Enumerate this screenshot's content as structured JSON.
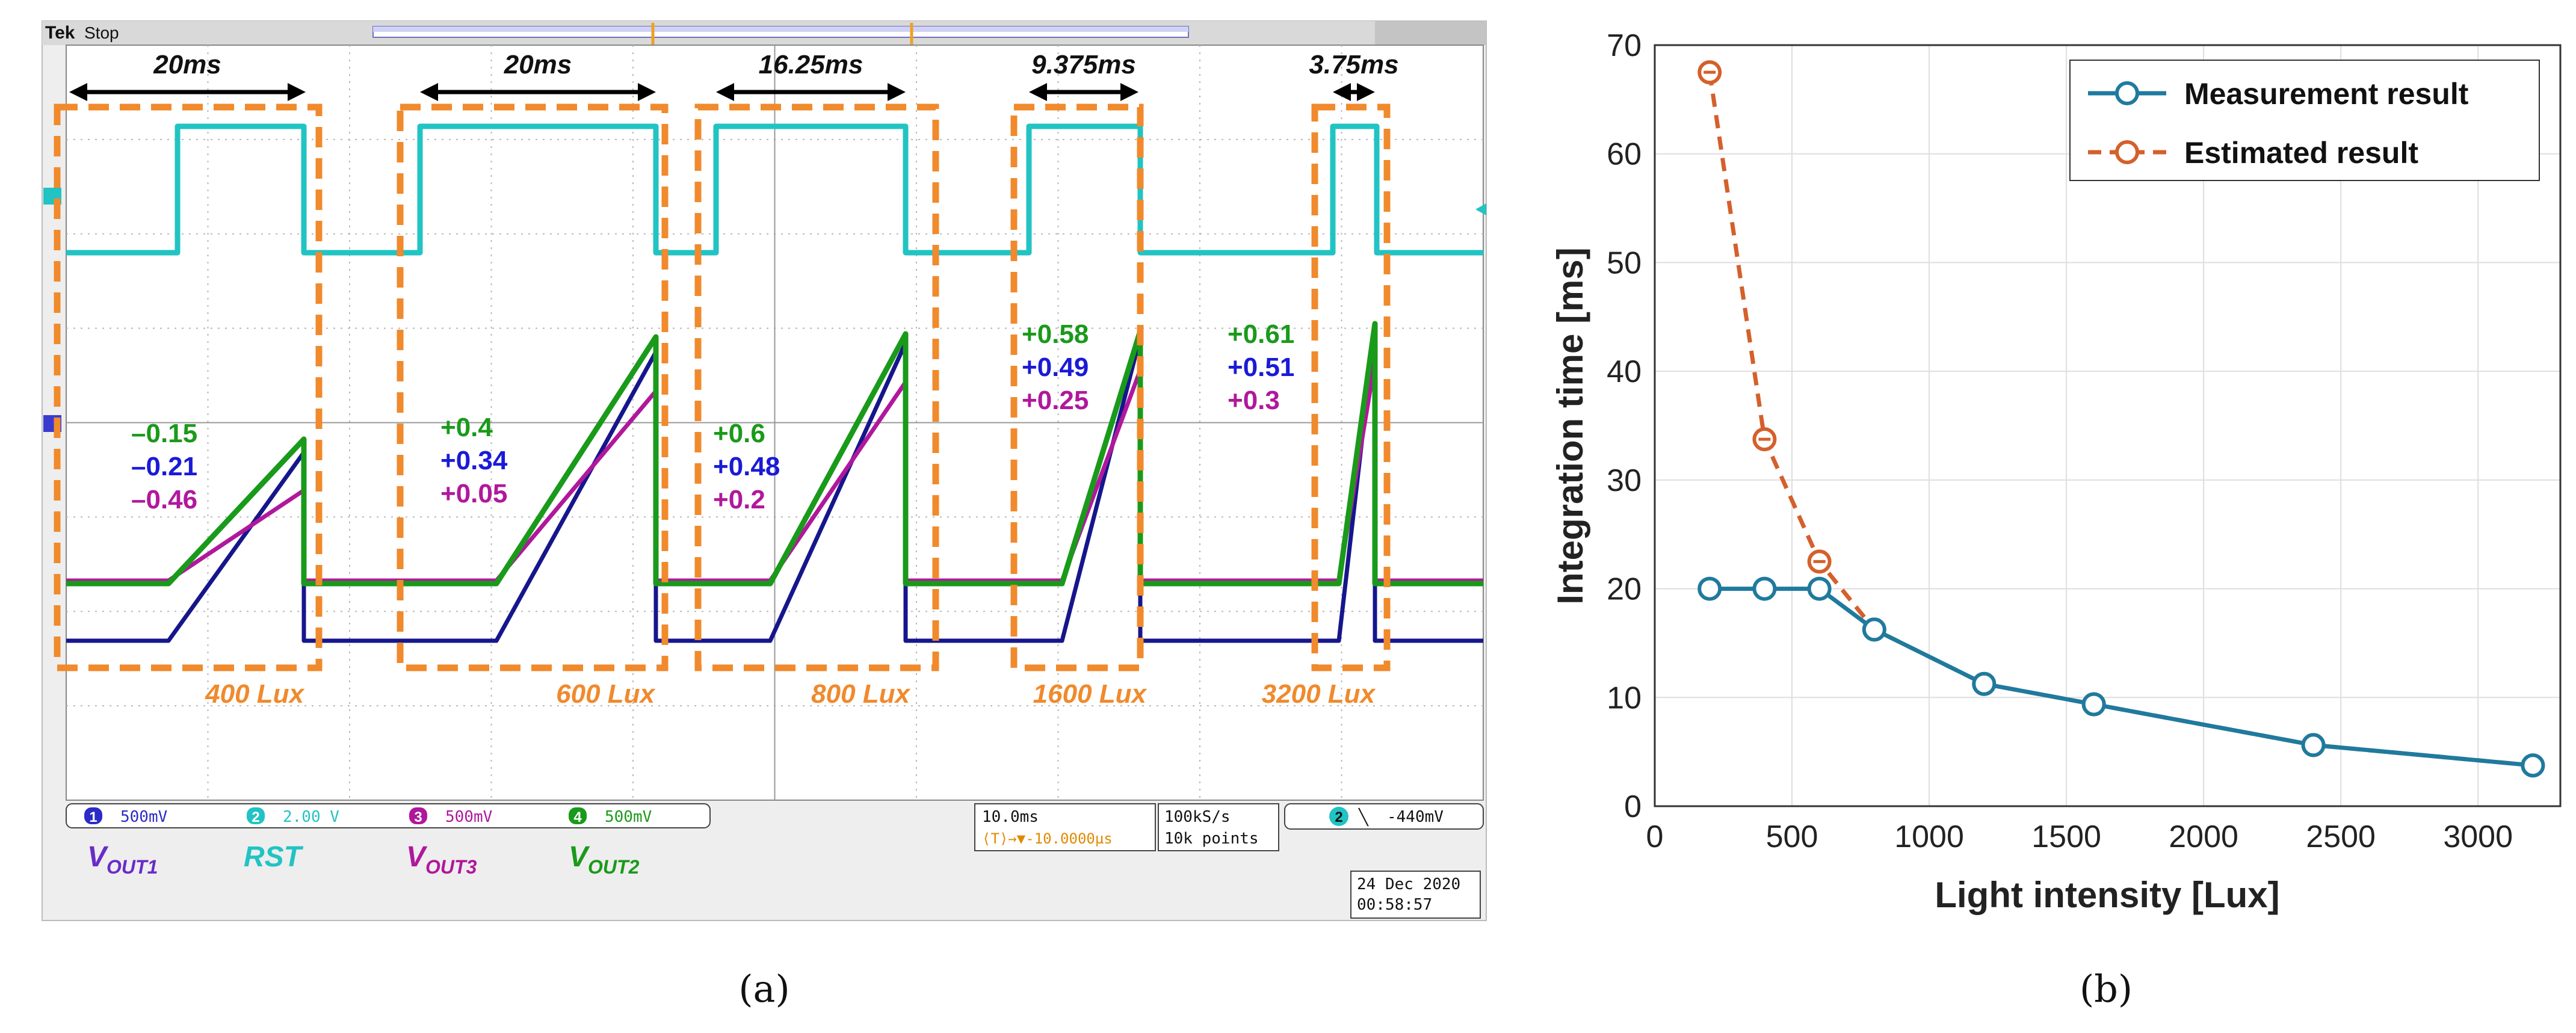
{
  "panel_a": {
    "caption": "(a)",
    "scope_brand": "Tek",
    "scope_state": "Stop",
    "segments": [
      {
        "duration": "20ms",
        "lux": "400 Lux",
        "values": [
          "–0.15",
          "–0.21",
          "–0.46"
        ]
      },
      {
        "duration": "20ms",
        "lux": "600 Lux",
        "values": [
          "+0.4",
          "+0.34",
          "+0.05"
        ]
      },
      {
        "duration": "16.25ms",
        "lux": "800 Lux",
        "values": [
          "+0.6",
          "+0.48",
          "+0.2"
        ]
      },
      {
        "duration": "9.375ms",
        "lux": "1600 Lux",
        "values": [
          "+0.58",
          "+0.49",
          "+0.25"
        ]
      },
      {
        "duration": "3.75ms",
        "lux": "3200 Lux",
        "values": [
          "+0.61",
          "+0.51",
          "+0.3"
        ]
      }
    ],
    "channels": [
      {
        "num": "1",
        "scale": "500mV",
        "signal": "V",
        "sub": "OUT1",
        "color": "#6a2cc8"
      },
      {
        "num": "2",
        "scale": "2.00 V",
        "signal": "RST",
        "sub": "",
        "color": "#22c3c3"
      },
      {
        "num": "3",
        "scale": "500mV",
        "signal": "V",
        "sub": "OUT3",
        "color": "#b0189c"
      },
      {
        "num": "4",
        "scale": "500mV",
        "signal": "V",
        "sub": "OUT2",
        "color": "#1a9a1a"
      }
    ],
    "timebase": "10.0ms",
    "trigger_offset": "⟨T⟩→▼-10.0000µs",
    "sample_rate": "100kS/s",
    "record_length": "10k points",
    "trigger_channel": "2",
    "trigger_slope": "╲",
    "trigger_level": "-440mV",
    "date": "24 Dec 2020",
    "time": "00:58:57",
    "colors": {
      "green": "#1a9a1a",
      "blue": "#1a1ad8",
      "magenta": "#b0189c",
      "cyan": "#22c3c3",
      "navy": "#16168c",
      "orange": "#f08a2c"
    }
  },
  "panel_b": {
    "caption": "(b)",
    "chart_data": {
      "type": "line",
      "xlabel": "Light intensity [Lux]",
      "ylabel": "Integration time [ms]",
      "xlim": [
        0,
        3300
      ],
      "ylim": [
        0,
        70
      ],
      "xticks": [
        0,
        500,
        1000,
        1500,
        2000,
        2500,
        3000
      ],
      "yticks": [
        0,
        10,
        20,
        30,
        40,
        50,
        60,
        70
      ],
      "grid": true,
      "legend_position": "top-right",
      "series": [
        {
          "name": "Measurement result",
          "style": "solid",
          "color": "#1f7a9e",
          "x": [
            200,
            400,
            600,
            800,
            1200,
            1600,
            2400,
            3200
          ],
          "y": [
            20,
            20,
            20,
            16.25,
            11.25,
            9.375,
            5.625,
            3.75
          ]
        },
        {
          "name": "Estimated result",
          "style": "dashed",
          "color": "#d4602b",
          "x": [
            200,
            400,
            600,
            800,
            1200,
            1600,
            2400,
            3200
          ],
          "y": [
            67.5,
            33.75,
            22.5,
            16.25,
            11.25,
            9.375,
            5.625,
            3.75
          ]
        }
      ]
    }
  }
}
